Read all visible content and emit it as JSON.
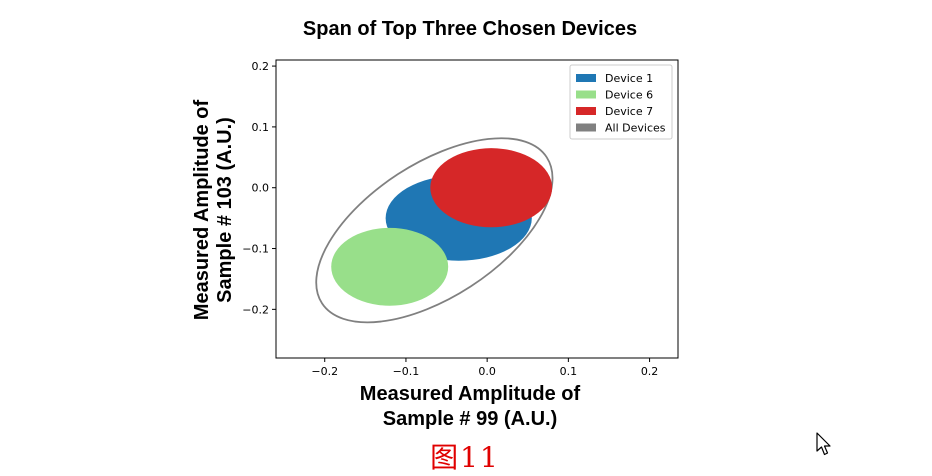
{
  "chart_data": {
    "type": "scatter",
    "title": "Span of Top Three Chosen Devices",
    "xlabel_lines": [
      "Measured Amplitude of",
      "Sample # 99 (A.U.)"
    ],
    "ylabel_lines": [
      "Measured Amplitude of",
      "Sample # 103 (A.U.)"
    ],
    "xlim": [
      -0.26,
      0.235
    ],
    "ylim": [
      -0.28,
      0.21
    ],
    "x_ticks": [
      -0.2,
      -0.1,
      0.0,
      0.1,
      0.2
    ],
    "x_tick_labels": [
      "−0.2",
      "−0.1",
      "0.0",
      "0.1",
      "0.2"
    ],
    "y_ticks": [
      -0.2,
      -0.1,
      0.0,
      0.1,
      0.2
    ],
    "y_tick_labels": [
      "−0.2",
      "−0.1",
      "0.0",
      "0.1",
      "0.2"
    ],
    "grid": false,
    "legend_position": "top-right",
    "series": [
      {
        "name": "Device 1",
        "shape": "filled-ellipse",
        "color": "#1f77b4",
        "center": [
          -0.035,
          -0.05
        ],
        "radii": [
          0.09,
          0.07
        ],
        "angle_deg": 0
      },
      {
        "name": "Device 6",
        "shape": "filled-ellipse",
        "color": "#98df8a",
        "center": [
          -0.12,
          -0.13
        ],
        "radii": [
          0.072,
          0.064
        ],
        "angle_deg": 0
      },
      {
        "name": "Device 7",
        "shape": "filled-ellipse",
        "color": "#d62728",
        "center": [
          0.005,
          0.0
        ],
        "radii": [
          0.075,
          0.065
        ],
        "angle_deg": 0
      },
      {
        "name": "All Devices",
        "shape": "outline-ellipse",
        "color": "#808080",
        "center": [
          -0.065,
          -0.07
        ],
        "radii": [
          0.165,
          0.11
        ],
        "angle_deg": 33
      }
    ]
  },
  "caption": "图11"
}
